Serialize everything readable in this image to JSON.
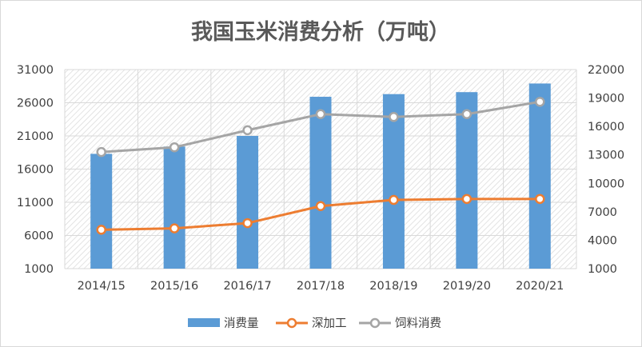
{
  "chart_data": {
    "type": "bar+line",
    "title": "我国玉米消费分析（万吨）",
    "categories": [
      "2014/15",
      "2015/16",
      "2016/17",
      "2017/18",
      "2018/19",
      "2019/20",
      "2020/21"
    ],
    "series": [
      {
        "name": "消费量",
        "type": "bar",
        "axis": "left",
        "color": "#5b9bd5",
        "values": [
          18300,
          19400,
          21000,
          26900,
          27300,
          27600,
          28900
        ]
      },
      {
        "name": "深加工",
        "type": "line",
        "axis": "right",
        "color": "#ed7d31",
        "values": [
          5100,
          5250,
          5800,
          7600,
          8250,
          8350,
          8350
        ]
      },
      {
        "name": "饲料消费",
        "type": "line",
        "axis": "right",
        "color": "#a5a5a5",
        "values": [
          13300,
          13800,
          15600,
          17300,
          17000,
          17300,
          18600
        ]
      }
    ],
    "left_axis": {
      "min": 1000,
      "max": 31000,
      "ticks": [
        1000,
        6000,
        11000,
        16000,
        21000,
        26000,
        31000
      ],
      "tick_labels": [
        "1000",
        "6000",
        "11000",
        "16000",
        "21000",
        "26000",
        "31000"
      ]
    },
    "right_axis": {
      "min": 1000,
      "max": 22000,
      "ticks": [
        1000,
        4000,
        7000,
        10000,
        13000,
        16000,
        19000,
        22000
      ],
      "tick_labels": [
        "1000",
        "4000",
        "7000",
        "10000",
        "13000",
        "16000",
        "19000",
        "22000"
      ]
    },
    "grid": true,
    "legend_position": "bottom",
    "colors": {
      "plot_hatch": "#d9d9d9",
      "grid": "#d9d9d9",
      "title": "#595959",
      "text": "#404040"
    }
  }
}
